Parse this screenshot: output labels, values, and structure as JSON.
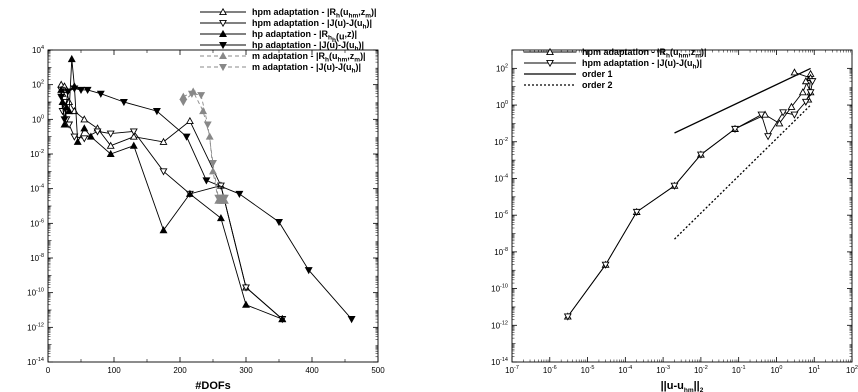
{
  "chart_data": [
    {
      "type": "line",
      "xlabel": "#DOFs",
      "ylabel": "",
      "xlim": [
        0,
        500
      ],
      "ylim": [
        1e-14,
        10000.0
      ],
      "yscale": "log",
      "xticks": [
        "0",
        "100",
        "200",
        "300",
        "400",
        "500"
      ],
      "yticks": [
        {
          "base": "10",
          "exp": "-14"
        },
        {
          "base": "10",
          "exp": "-12"
        },
        {
          "base": "10",
          "exp": "-10"
        },
        {
          "base": "10",
          "exp": "-8"
        },
        {
          "base": "10",
          "exp": "-6"
        },
        {
          "base": "10",
          "exp": "-4"
        },
        {
          "base": "10",
          "exp": "-2"
        },
        {
          "base": "10",
          "exp": "0"
        },
        {
          "base": "10",
          "exp": "2"
        },
        {
          "base": "10",
          "exp": "4"
        }
      ],
      "legend_position": "top-right",
      "series": [
        {
          "label": {
            "pre": "hpm adaptation - |R",
            "s1": "h",
            "mid": "(u",
            "s2": "hm",
            "mid2": ",z",
            "s3": "m",
            "post": ")|"
          },
          "color": "#000000",
          "marker": "triangle-up",
          "dash": "",
          "x": [
            20,
            22,
            25,
            28,
            32,
            40,
            55,
            75,
            95,
            130,
            175,
            215,
            262,
            300,
            355
          ],
          "y": [
            100,
            30,
            80,
            50,
            10,
            3,
            1,
            0.3,
            0.03,
            0.1,
            0.05,
            0.8,
            0.00015,
            2e-10,
            3e-12
          ]
        },
        {
          "label": {
            "pre": "hpm adaptation - |J(u)-J(u",
            "s1": "h",
            "post": ")|"
          },
          "color": "#000000",
          "marker": "triangle-down",
          "dash": "",
          "x": [
            20,
            22,
            25,
            28,
            32,
            40,
            55,
            75,
            95,
            130,
            175,
            215,
            262,
            300,
            355
          ],
          "y": [
            50,
            3,
            10,
            1,
            0.5,
            0.1,
            0.08,
            0.2,
            0.15,
            0.2,
            0.001,
            5e-05,
            0.00015,
            2e-10,
            3e-12
          ]
        },
        {
          "label": {
            "pre": "hp adaptation - |R",
            "s1": "h",
            "post": "(u",
            "s2": "h",
            "post2": ",z)|"
          },
          "color": "#000000",
          "marker": "triangle-up-filled",
          "dash": "",
          "x": [
            20,
            22,
            25,
            28,
            32,
            36,
            40,
            45,
            55,
            65,
            95,
            130,
            175,
            215,
            262,
            300,
            355
          ],
          "y": [
            50,
            10,
            0.5,
            5,
            3,
            3000,
            80,
            0.05,
            0.3,
            0.1,
            0.01,
            0.03,
            4e-07,
            5e-05,
            2e-06,
            2e-11,
            3e-12
          ]
        },
        {
          "label": {
            "pre": "hp adaptation - |J(u)-J(u",
            "s1": "h",
            "post": ")|"
          },
          "color": "#000000",
          "marker": "triangle-down-filled",
          "dash": "",
          "x": [
            20,
            25,
            30,
            40,
            50,
            60,
            80,
            115,
            165,
            210,
            240,
            290,
            350,
            395,
            460
          ],
          "y": [
            20,
            1,
            40,
            60,
            50,
            50,
            30,
            10,
            3,
            0.1,
            0.0003,
            5e-05,
            1.2e-06,
            2e-09,
            3e-12
          ]
        },
        {
          "label": {
            "pre": "m adaptation - |R",
            "s1": "h",
            "mid": "(u",
            "s2": "hm",
            "mid2": ",z",
            "s3": "m",
            "post": ")|"
          },
          "color": "#888888",
          "marker": "triangle-up-filled",
          "dash": "4 3",
          "x": [
            205,
            220,
            235,
            245,
            250,
            258,
            262,
            265,
            268
          ],
          "y": [
            20,
            40,
            3,
            0.1,
            0.001,
            2e-05,
            2e-05,
            2e-05,
            2e-05
          ]
        },
        {
          "label": {
            "pre": "m adaptation - |J(u)-J(u",
            "s1": "h",
            "post": ")|"
          },
          "color": "#888888",
          "marker": "triangle-down-filled",
          "dash": "4 3",
          "x": [
            205,
            218,
            232,
            242,
            250,
            258,
            262,
            265,
            268
          ],
          "y": [
            10,
            30,
            25,
            0.5,
            0.003,
            3e-05,
            3e-05,
            3e-05,
            3e-05
          ]
        }
      ]
    },
    {
      "type": "line",
      "xlabel": {
        "pre": "||u-u",
        "sub1": "hm",
        "post": "||",
        "sub2": "2"
      },
      "ylabel": "",
      "xscale": "log",
      "yscale": "log",
      "xlim": [
        1e-07,
        100
      ],
      "ylim": [
        1e-14,
        1000.0
      ],
      "xticks": [
        {
          "base": "10",
          "exp": "-7"
        },
        {
          "base": "10",
          "exp": "-6"
        },
        {
          "base": "10",
          "exp": "-5"
        },
        {
          "base": "10",
          "exp": "-4"
        },
        {
          "base": "10",
          "exp": "-3"
        },
        {
          "base": "10",
          "exp": "-2"
        },
        {
          "base": "10",
          "exp": "-1"
        },
        {
          "base": "10",
          "exp": "0"
        },
        {
          "base": "10",
          "exp": "1"
        },
        {
          "base": "10",
          "exp": "2"
        }
      ],
      "yticks": [
        {
          "base": "10",
          "exp": "-14"
        },
        {
          "base": "10",
          "exp": "-12"
        },
        {
          "base": "10",
          "exp": "-10"
        },
        {
          "base": "10",
          "exp": "-8"
        },
        {
          "base": "10",
          "exp": "-6"
        },
        {
          "base": "10",
          "exp": "-4"
        },
        {
          "base": "10",
          "exp": "-2"
        },
        {
          "base": "10",
          "exp": "0"
        },
        {
          "base": "10",
          "exp": "2"
        }
      ],
      "legend_position": "top-left",
      "series": [
        {
          "label": {
            "pre": "hpm adaptation - |R",
            "s1": "h",
            "mid": "(u",
            "s2": "hm",
            "mid2": ",z",
            "s3": "m",
            "post": ")|"
          },
          "color": "#000000",
          "marker": "triangle-up",
          "dash": "",
          "x": [
            3e-06,
            3e-05,
            0.0002,
            0.002,
            0.01,
            0.08,
            0.5,
            1.2,
            2.5,
            5,
            8,
            6,
            8,
            7,
            8,
            3
          ],
          "y": [
            3e-12,
            2e-09,
            1.5e-06,
            4e-05,
            0.002,
            0.05,
            0.3,
            0.1,
            0.8,
            5,
            50,
            20,
            5,
            2,
            30,
            60
          ]
        },
        {
          "label": {
            "pre": "hpm adaptation - |J(u)-J(u",
            "s1": "h",
            "post": ")|"
          },
          "color": "#000000",
          "marker": "triangle-down",
          "dash": "",
          "x": [
            3e-06,
            3e-05,
            0.0002,
            0.002,
            0.01,
            0.08,
            0.4,
            0.6,
            1.5,
            3,
            6,
            8,
            9
          ],
          "y": [
            3e-12,
            2e-09,
            1.5e-06,
            4e-05,
            0.002,
            0.05,
            0.3,
            0.02,
            0.4,
            0.3,
            1.5,
            5,
            20
          ]
        },
        {
          "label": {
            "pre": "order 1"
          },
          "color": "#000000",
          "marker": "none",
          "dash": "",
          "x": [
            0.002,
            8
          ],
          "y": [
            0.03,
            100
          ]
        },
        {
          "label": {
            "pre": "order 2"
          },
          "color": "#000000",
          "marker": "none",
          "dash": "2 2",
          "x": [
            0.002,
            8
          ],
          "y": [
            5e-08,
            1
          ]
        }
      ]
    }
  ]
}
